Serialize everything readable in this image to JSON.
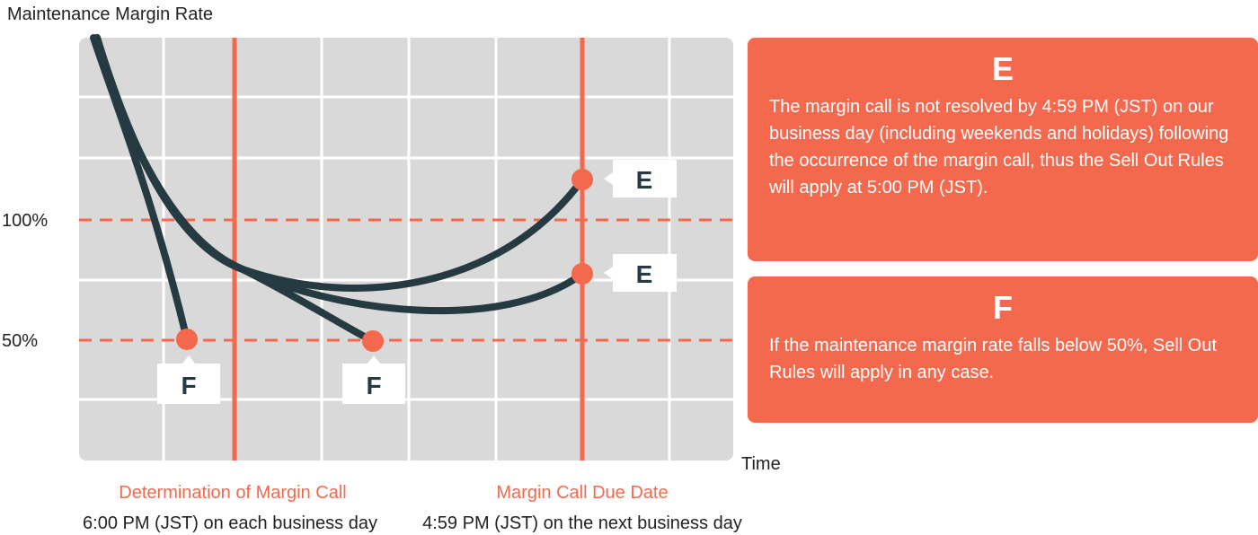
{
  "y_axis_label": "Maintenance Margin Rate",
  "x_axis_label": "Time",
  "levels": [
    "100%",
    "50%"
  ],
  "markers": [
    "E",
    "E",
    "F",
    "F"
  ],
  "events": [
    {
      "title": "Determination of Margin Call",
      "subtitle": "6:00 PM (JST) on each business day"
    },
    {
      "title": "Margin Call Due Date",
      "subtitle": "4:59 PM (JST) on the next business day"
    }
  ],
  "notes": [
    {
      "title": "E",
      "text": "The margin call is not resolved by 4:59 PM (JST) on our business day (including weekends and holidays) following the occurrence of the margin call, thus the Sell Out Rules will apply at 5:00 PM (JST)."
    },
    {
      "title": "F",
      "text": "If the maintenance margin rate falls below 50%, Sell Out Rules will apply in any case."
    }
  ]
}
